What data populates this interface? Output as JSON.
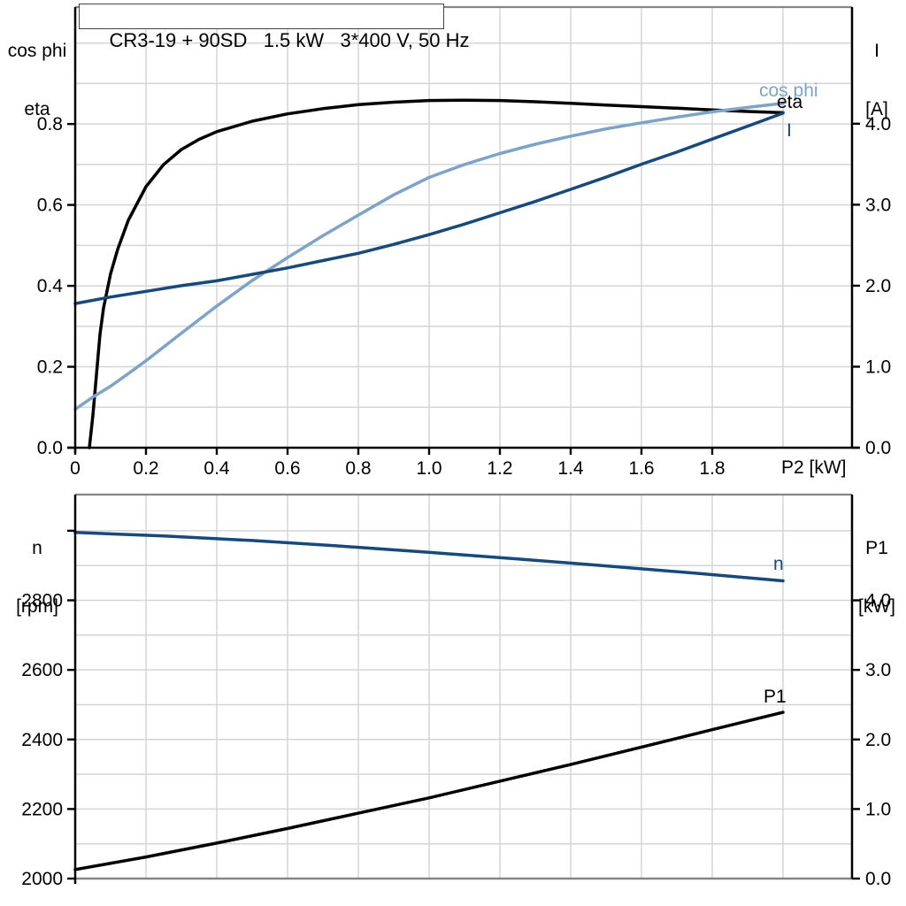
{
  "title": "CR3-19 + 90SD   1.5 kW   3*400 V, 50 Hz",
  "colors": {
    "black": "#000000",
    "dark_blue": "#17497c",
    "light_blue": "#7ea3c9",
    "grid": "#d3d5d8",
    "frame": "#858585",
    "axis": "#000000"
  },
  "axis_corner_labels": {
    "top_left_line1": "cos phi",
    "top_left_line2": "eta",
    "top_right_line1": "I",
    "top_right_line2": "[A]",
    "bottom_left_line1": "n",
    "bottom_left_line2": "[rpm]",
    "bottom_right_line1": "P1",
    "bottom_right_line2": "[kW]"
  },
  "chart_data": [
    {
      "type": "line",
      "title": "CR3-19 + 90SD   1.5 kW   3*400 V, 50 Hz",
      "xlabel": "P2 [kW]",
      "ylabel_left": "cos phi / eta",
      "ylabel_right": "I [A]",
      "xlim": [
        0,
        2.195
      ],
      "ylim_left": [
        0,
        1.089
      ],
      "ylim_right": [
        0,
        5.44
      ],
      "grid": true,
      "x_tick_values": [
        0,
        0.2,
        0.4,
        0.6,
        0.8,
        1.0,
        1.2,
        1.4,
        1.6,
        1.8
      ],
      "x_tick_labels": [
        "0",
        "0.2",
        "0.4",
        "0.6",
        "0.8",
        "1.0",
        "1.2",
        "1.4",
        "1.6",
        "1.8"
      ],
      "y_left_tick_values": [
        0,
        0.2,
        0.4,
        0.6,
        0.8
      ],
      "y_left_tick_labels": [
        "0.0",
        "0.2",
        "0.4",
        "0.6",
        "0.8"
      ],
      "y_right_tick_values": [
        0,
        1,
        2,
        3,
        4
      ],
      "y_right_tick_labels": [
        "0.0",
        "1.0",
        "2.0",
        "3.0",
        "4.0"
      ],
      "series": [
        {
          "name": "eta",
          "axis": "left",
          "color": "#000000",
          "points": [
            [
              0.04,
              0
            ],
            [
              0.05,
              0.08
            ],
            [
              0.06,
              0.18
            ],
            [
              0.07,
              0.28
            ],
            [
              0.08,
              0.345
            ],
            [
              0.1,
              0.43
            ],
            [
              0.12,
              0.49
            ],
            [
              0.15,
              0.562
            ],
            [
              0.2,
              0.645
            ],
            [
              0.25,
              0.7
            ],
            [
              0.3,
              0.737
            ],
            [
              0.35,
              0.762
            ],
            [
              0.4,
              0.781
            ],
            [
              0.5,
              0.807
            ],
            [
              0.6,
              0.825
            ],
            [
              0.7,
              0.838
            ],
            [
              0.8,
              0.848
            ],
            [
              0.9,
              0.854
            ],
            [
              1.0,
              0.858
            ],
            [
              1.1,
              0.859
            ],
            [
              1.2,
              0.858
            ],
            [
              1.3,
              0.855
            ],
            [
              1.4,
              0.851
            ],
            [
              1.5,
              0.847
            ],
            [
              1.6,
              0.843
            ],
            [
              1.7,
              0.839
            ],
            [
              1.8,
              0.835
            ],
            [
              1.9,
              0.831
            ],
            [
              2.0,
              0.828
            ]
          ]
        },
        {
          "name": "cos phi",
          "axis": "left",
          "color": "#7ea3c9",
          "points": [
            [
              0,
              0.095
            ],
            [
              0.05,
              0.125
            ],
            [
              0.1,
              0.152
            ],
            [
              0.15,
              0.183
            ],
            [
              0.2,
              0.215
            ],
            [
              0.3,
              0.283
            ],
            [
              0.4,
              0.35
            ],
            [
              0.5,
              0.413
            ],
            [
              0.6,
              0.47
            ],
            [
              0.7,
              0.524
            ],
            [
              0.8,
              0.575
            ],
            [
              0.9,
              0.625
            ],
            [
              1.0,
              0.668
            ],
            [
              1.1,
              0.7
            ],
            [
              1.2,
              0.727
            ],
            [
              1.3,
              0.75
            ],
            [
              1.4,
              0.77
            ],
            [
              1.5,
              0.788
            ],
            [
              1.6,
              0.803
            ],
            [
              1.7,
              0.817
            ],
            [
              1.8,
              0.83
            ],
            [
              1.9,
              0.841
            ],
            [
              2.0,
              0.851
            ]
          ]
        },
        {
          "name": "I",
          "axis": "right",
          "color": "#17497c",
          "points": [
            [
              0,
              1.78
            ],
            [
              0.1,
              1.86
            ],
            [
              0.2,
              1.93
            ],
            [
              0.3,
              2.0
            ],
            [
              0.4,
              2.06
            ],
            [
              0.5,
              2.14
            ],
            [
              0.6,
              2.22
            ],
            [
              0.7,
              2.31
            ],
            [
              0.8,
              2.4
            ],
            [
              0.9,
              2.51
            ],
            [
              1.0,
              2.63
            ],
            [
              1.1,
              2.76
            ],
            [
              1.2,
              2.9
            ],
            [
              1.3,
              3.04
            ],
            [
              1.4,
              3.19
            ],
            [
              1.5,
              3.34
            ],
            [
              1.6,
              3.5
            ],
            [
              1.7,
              3.65
            ],
            [
              1.8,
              3.81
            ],
            [
              1.9,
              3.97
            ],
            [
              2.0,
              4.13
            ]
          ]
        }
      ]
    },
    {
      "type": "line",
      "title": "",
      "xlabel": "",
      "ylabel_left": "n [rpm]",
      "ylabel_right": "P1 [kW]",
      "xlim": [
        0,
        2.195
      ],
      "ylim_left": [
        2000,
        3104
      ],
      "ylim_right": [
        0,
        5.52
      ],
      "grid": true,
      "x_tick_values": [],
      "x_tick_labels": [],
      "y_left_tick_values": [
        2000,
        2200,
        2400,
        2600,
        2800,
        3000
      ],
      "y_left_tick_labels": [
        "2000",
        "2200",
        "2400",
        "2600",
        "2800",
        ""
      ],
      "y_right_tick_values": [
        0,
        1,
        2,
        3,
        4
      ],
      "y_right_tick_labels": [
        "0.0",
        "1.0",
        "2.0",
        "3.0",
        "4.0"
      ],
      "series": [
        {
          "name": "n",
          "axis": "left",
          "color": "#17497c",
          "points": [
            [
              0,
              2995
            ],
            [
              0.25,
              2985
            ],
            [
              0.5,
              2972
            ],
            [
              0.75,
              2956
            ],
            [
              1.0,
              2938
            ],
            [
              1.25,
              2919
            ],
            [
              1.5,
              2899
            ],
            [
              1.75,
              2878
            ],
            [
              2.0,
              2856
            ]
          ]
        },
        {
          "name": "P1",
          "axis": "right",
          "color": "#000000",
          "points": [
            [
              0,
              0.13
            ],
            [
              0.2,
              0.31
            ],
            [
              0.4,
              0.51
            ],
            [
              0.6,
              0.72
            ],
            [
              0.8,
              0.94
            ],
            [
              1.0,
              1.16
            ],
            [
              1.2,
              1.4
            ],
            [
              1.4,
              1.64
            ],
            [
              1.6,
              1.89
            ],
            [
              1.8,
              2.14
            ],
            [
              2.0,
              2.39
            ]
          ]
        }
      ]
    }
  ]
}
